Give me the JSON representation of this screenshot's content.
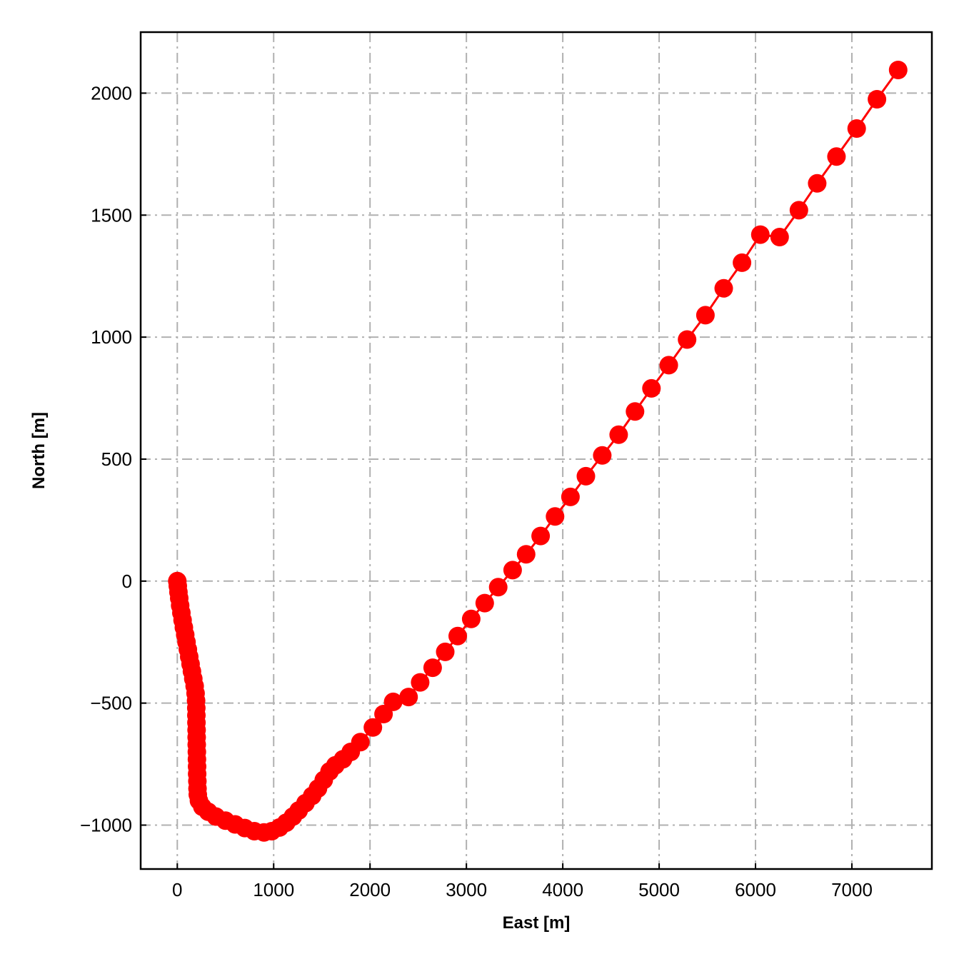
{
  "chart_data": {
    "type": "scatter",
    "title": "",
    "xlabel": "East [m]",
    "ylabel": "North [m]",
    "xlim": [
      -380,
      7830
    ],
    "ylim": [
      -1180,
      2250
    ],
    "x_ticks": [
      0,
      1000,
      2000,
      3000,
      4000,
      5000,
      6000,
      7000
    ],
    "x_tick_labels": [
      "0",
      "1000",
      "2000",
      "3000",
      "4000",
      "5000",
      "6000",
      "7000"
    ],
    "y_ticks": [
      -1000,
      -500,
      0,
      500,
      1000,
      1500,
      2000
    ],
    "y_tick_labels": [
      "−1000",
      "−500",
      "0",
      "500",
      "1000",
      "1500",
      "2000"
    ],
    "grid": true,
    "legend": false,
    "series": [
      {
        "color": "#ff0000",
        "marker": "circle",
        "line": true,
        "points": [
          [
            0,
            0
          ],
          [
            5,
            -20
          ],
          [
            12,
            -45
          ],
          [
            20,
            -70
          ],
          [
            30,
            -100
          ],
          [
            42,
            -130
          ],
          [
            55,
            -160
          ],
          [
            68,
            -190
          ],
          [
            82,
            -220
          ],
          [
            96,
            -250
          ],
          [
            110,
            -280
          ],
          [
            124,
            -310
          ],
          [
            138,
            -340
          ],
          [
            152,
            -370
          ],
          [
            166,
            -400
          ],
          [
            180,
            -430
          ],
          [
            190,
            -460
          ],
          [
            195,
            -490
          ],
          [
            197,
            -520
          ],
          [
            198,
            -550
          ],
          [
            199,
            -580
          ],
          [
            200,
            -610
          ],
          [
            201,
            -640
          ],
          [
            202,
            -670
          ],
          [
            203,
            -700
          ],
          [
            204,
            -730
          ],
          [
            205,
            -760
          ],
          [
            206,
            -790
          ],
          [
            208,
            -820
          ],
          [
            210,
            -850
          ],
          [
            213,
            -875
          ],
          [
            225,
            -900
          ],
          [
            260,
            -925
          ],
          [
            320,
            -945
          ],
          [
            400,
            -965
          ],
          [
            500,
            -982
          ],
          [
            600,
            -997
          ],
          [
            700,
            -1012
          ],
          [
            800,
            -1025
          ],
          [
            900,
            -1030
          ],
          [
            980,
            -1025
          ],
          [
            1060,
            -1010
          ],
          [
            1130,
            -990
          ],
          [
            1200,
            -965
          ],
          [
            1260,
            -940
          ],
          [
            1330,
            -910
          ],
          [
            1400,
            -880
          ],
          [
            1460,
            -850
          ],
          [
            1520,
            -815
          ],
          [
            1580,
            -780
          ],
          [
            1640,
            -755
          ],
          [
            1720,
            -730
          ],
          [
            1800,
            -700
          ],
          [
            1900,
            -660
          ],
          [
            2030,
            -600
          ],
          [
            2140,
            -545
          ],
          [
            2240,
            -495
          ],
          [
            2400,
            -475
          ],
          [
            2520,
            -415
          ],
          [
            2650,
            -355
          ],
          [
            2780,
            -290
          ],
          [
            2910,
            -225
          ],
          [
            3050,
            -155
          ],
          [
            3190,
            -90
          ],
          [
            3330,
            -25
          ],
          [
            3480,
            45
          ],
          [
            3620,
            110
          ],
          [
            3770,
            185
          ],
          [
            3920,
            265
          ],
          [
            4080,
            345
          ],
          [
            4240,
            430
          ],
          [
            4410,
            515
          ],
          [
            4580,
            600
          ],
          [
            4750,
            695
          ],
          [
            4920,
            790
          ],
          [
            5100,
            885
          ],
          [
            5290,
            990
          ],
          [
            5480,
            1090
          ],
          [
            5670,
            1200
          ],
          [
            5860,
            1305
          ],
          [
            6050,
            1420
          ],
          [
            6250,
            1410
          ],
          [
            6450,
            1520
          ],
          [
            6640,
            1630
          ],
          [
            6840,
            1740
          ],
          [
            7050,
            1855
          ],
          [
            7260,
            1975
          ],
          [
            7480,
            2095
          ]
        ]
      }
    ]
  }
}
